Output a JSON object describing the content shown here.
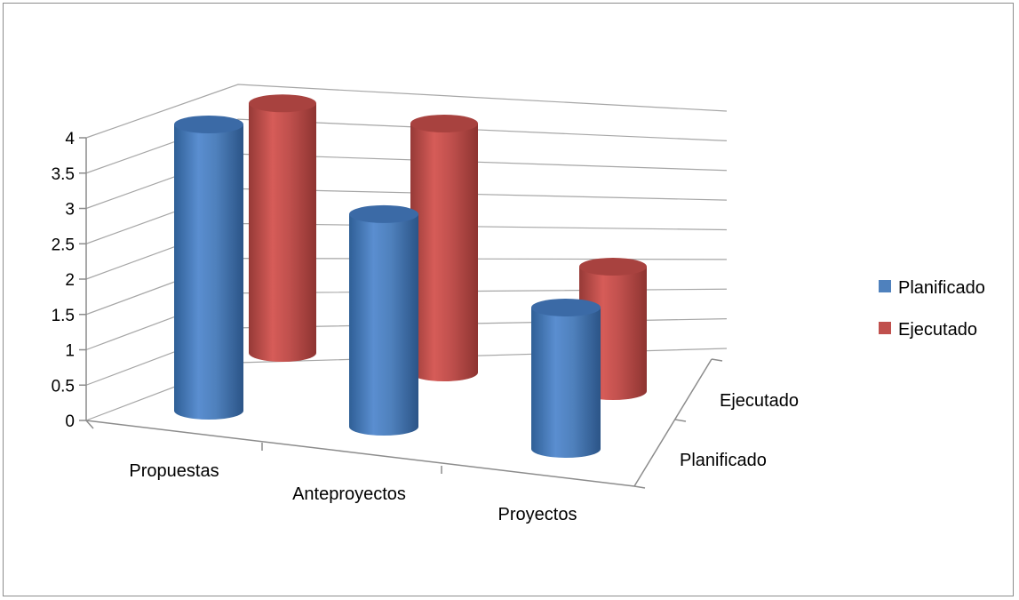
{
  "chart_data": {
    "type": "bar",
    "style": "3d-cylinder",
    "categories": [
      "Propuestas",
      "Anteproyectos",
      "Proyectos"
    ],
    "series": [
      {
        "name": "Planificado",
        "values": [
          4,
          3,
          2
        ],
        "color": "#4f81bd"
      },
      {
        "name": "Ejecutado",
        "values": [
          4,
          4,
          2
        ],
        "color": "#c0504d"
      }
    ],
    "depth_labels": [
      "Ejecutado",
      "Planificado"
    ],
    "y_ticks": [
      "0",
      "0.5",
      "1",
      "1.5",
      "2",
      "2.5",
      "3",
      "3.5",
      "4"
    ],
    "ylim": [
      0,
      4
    ],
    "title": "",
    "xlabel": "",
    "ylabel": "",
    "grid": true,
    "legend_position": "right"
  }
}
